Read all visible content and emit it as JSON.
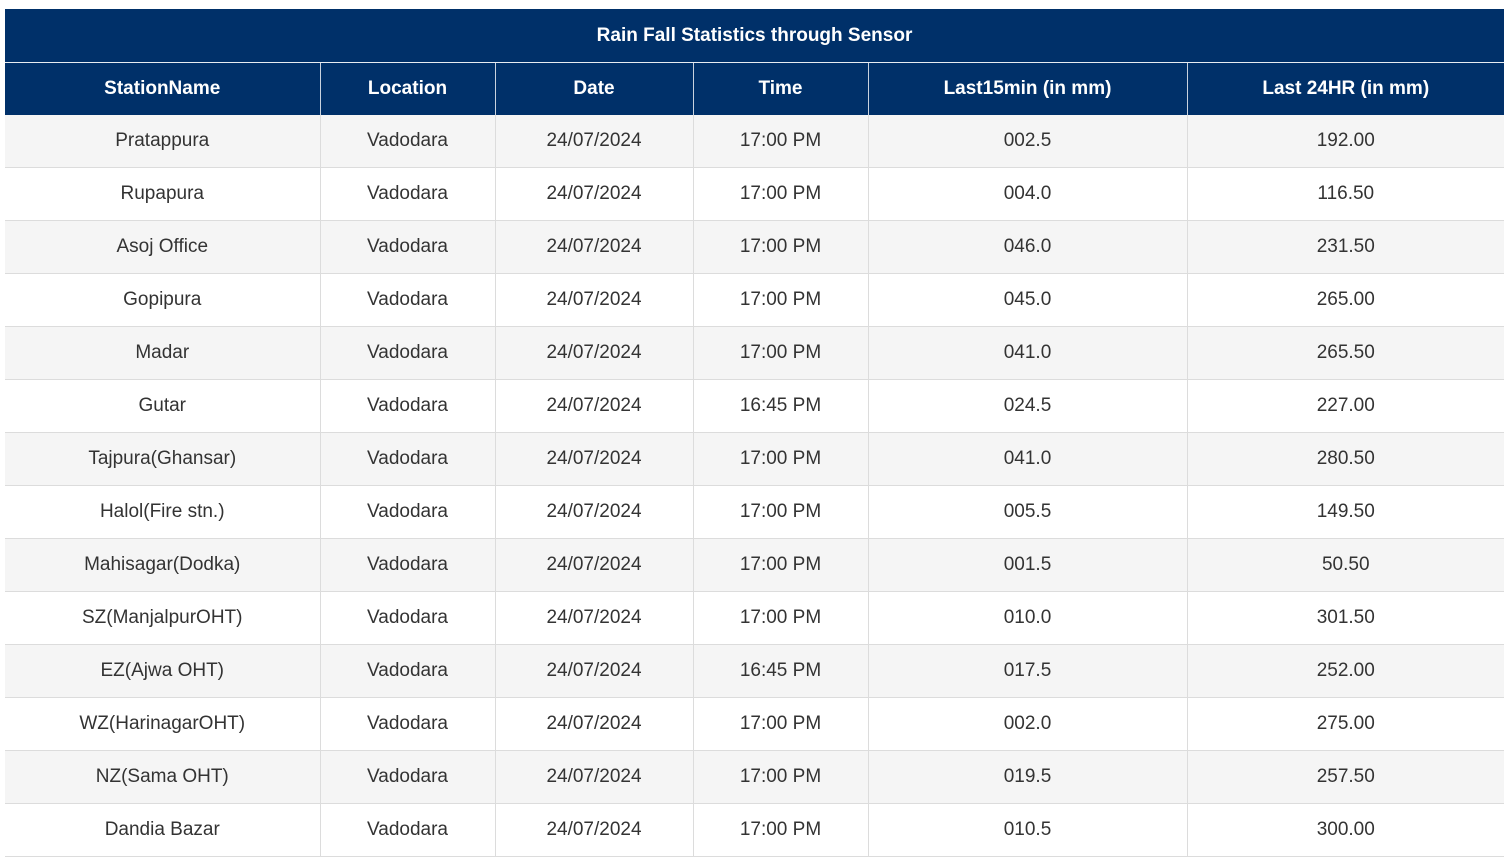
{
  "table": {
    "title": "Rain Fall Statistics through Sensor",
    "headers": [
      "StationName",
      "Location",
      "Date",
      "Time",
      "Last15min (in mm)",
      "Last 24HR (in mm)"
    ],
    "rows": [
      [
        "Pratappura",
        "Vadodara",
        "24/07/2024",
        "17:00 PM",
        "002.5",
        "192.00"
      ],
      [
        "Rupapura",
        "Vadodara",
        "24/07/2024",
        "17:00 PM",
        "004.0",
        "116.50"
      ],
      [
        "Asoj Office",
        "Vadodara",
        "24/07/2024",
        "17:00 PM",
        "046.0",
        "231.50"
      ],
      [
        "Gopipura",
        "Vadodara",
        "24/07/2024",
        "17:00 PM",
        "045.0",
        "265.00"
      ],
      [
        "Madar",
        "Vadodara",
        "24/07/2024",
        "17:00 PM",
        "041.0",
        "265.50"
      ],
      [
        "Gutar",
        "Vadodara",
        "24/07/2024",
        "16:45 PM",
        "024.5",
        "227.00"
      ],
      [
        "Tajpura(Ghansar)",
        "Vadodara",
        "24/07/2024",
        "17:00 PM",
        "041.0",
        "280.50"
      ],
      [
        "Halol(Fire stn.)",
        "Vadodara",
        "24/07/2024",
        "17:00 PM",
        "005.5",
        "149.50"
      ],
      [
        "Mahisagar(Dodka)",
        "Vadodara",
        "24/07/2024",
        "17:00 PM",
        "001.5",
        "50.50"
      ],
      [
        "SZ(ManjalpurOHT)",
        "Vadodara",
        "24/07/2024",
        "17:00 PM",
        "010.0",
        "301.50"
      ],
      [
        "EZ(Ajwa OHT)",
        "Vadodara",
        "24/07/2024",
        "16:45 PM",
        "017.5",
        "252.00"
      ],
      [
        "WZ(HarinagarOHT)",
        "Vadodara",
        "24/07/2024",
        "17:00 PM",
        "002.0",
        "275.00"
      ],
      [
        "NZ(Sama OHT)",
        "Vadodara",
        "24/07/2024",
        "17:00 PM",
        "019.5",
        "257.50"
      ],
      [
        "Dandia Bazar",
        "Vadodara",
        "24/07/2024",
        "17:00 PM",
        "010.5",
        "300.00"
      ]
    ]
  },
  "colors": {
    "header_bg": "#003069",
    "header_text": "#ffffff",
    "row_stripe": "#f5f5f5",
    "cell_text": "#333333"
  }
}
